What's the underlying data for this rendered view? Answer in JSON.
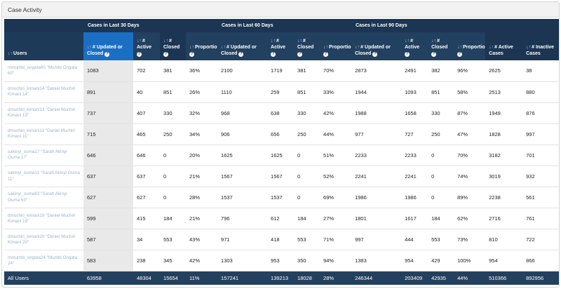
{
  "panel": {
    "title": "Case Activity"
  },
  "groups": {
    "g30": "Cases in Last 30 Days",
    "g60": "Cases in Last 60 Days",
    "g90": "Cases in Last 90 Days"
  },
  "headers": {
    "users": "Users",
    "updated": "# Updated or Closed",
    "active": "# Active",
    "closed": "# Closed",
    "proportion": "Proportion",
    "active_cases": "# Active Cases",
    "inactive_cases": "# Inactive Cases"
  },
  "rows": [
    {
      "user": "mmumbi_ongata60 \"Mumbi Ongata 60\"",
      "v": [
        "1083",
        "702",
        "381",
        "36%",
        "2100",
        "1719",
        "381",
        "70%",
        "2873",
        "2491",
        "382",
        "96%",
        "2625",
        "38"
      ]
    },
    {
      "user": "dmuchiri_kimani14 \"Daniel Muchiri Kimani 14\"",
      "v": [
        "891",
        "40",
        "851",
        "26%",
        "1110",
        "259",
        "851",
        "33%",
        "1944",
        "1093",
        "851",
        "58%",
        "2513",
        "880"
      ]
    },
    {
      "user": "dmuchiri_kimani13 \"Daniel Muchiri Kimani 13\"",
      "v": [
        "737",
        "407",
        "330",
        "32%",
        "968",
        "638",
        "330",
        "42%",
        "1988",
        "1658",
        "330",
        "87%",
        "1949",
        "876"
      ]
    },
    {
      "user": "dmuchiri_kimani11 \"Daniel Muchiri Kimani 11\"",
      "v": [
        "715",
        "465",
        "250",
        "34%",
        "906",
        "656",
        "250",
        "44%",
        "977",
        "727",
        "250",
        "47%",
        "1828",
        "997"
      ]
    },
    {
      "user": "sakinyi_ouma17 \"Sarah Akinyi Ouma 17\"",
      "v": [
        "646",
        "646",
        "0",
        "20%",
        "1625",
        "1625",
        "0",
        "51%",
        "2233",
        "2233",
        "0",
        "70%",
        "3182",
        "701"
      ]
    },
    {
      "user": "sakinyi_ouma11 \"Sarah Akinyi Ouma 11\"",
      "v": [
        "637",
        "637",
        "0",
        "21%",
        "1567",
        "1567",
        "0",
        "52%",
        "2241",
        "2241",
        "0",
        "74%",
        "3019",
        "932"
      ]
    },
    {
      "user": "sakinyi_ouma63 \"Sarah Akinyi Ouma 63\"",
      "v": [
        "627",
        "627",
        "0",
        "28%",
        "1537",
        "1537",
        "0",
        "69%",
        "1986",
        "1986",
        "0",
        "89%",
        "2238",
        "561"
      ]
    },
    {
      "user": "dmuchiri_kimani19 \"Daniel Muchiri Kimani 19\"",
      "v": [
        "599",
        "415",
        "184",
        "21%",
        "796",
        "612",
        "184",
        "27%",
        "1801",
        "1617",
        "184",
        "62%",
        "2716",
        "761"
      ]
    },
    {
      "user": "dmuchiri_kimani20 \"Daniel Muchiri Kimani 20\"",
      "v": [
        "587",
        "34",
        "553",
        "43%",
        "971",
        "418",
        "553",
        "71%",
        "997",
        "444",
        "553",
        "73%",
        "810",
        "722"
      ]
    },
    {
      "user": "mmumbi_ongata24 \"Mumbi Ongata 24\"",
      "v": [
        "583",
        "238",
        "345",
        "42%",
        "1303",
        "953",
        "350",
        "94%",
        "1383",
        "954",
        "429",
        "100%",
        "954",
        "866"
      ]
    }
  ],
  "footer": {
    "label": "All Users",
    "v": [
      "63958",
      "48304",
      "15654",
      "11%",
      "157241",
      "139213",
      "18028",
      "28%",
      "246344",
      "203409",
      "42935",
      "44%",
      "510366",
      "892956"
    ]
  }
}
